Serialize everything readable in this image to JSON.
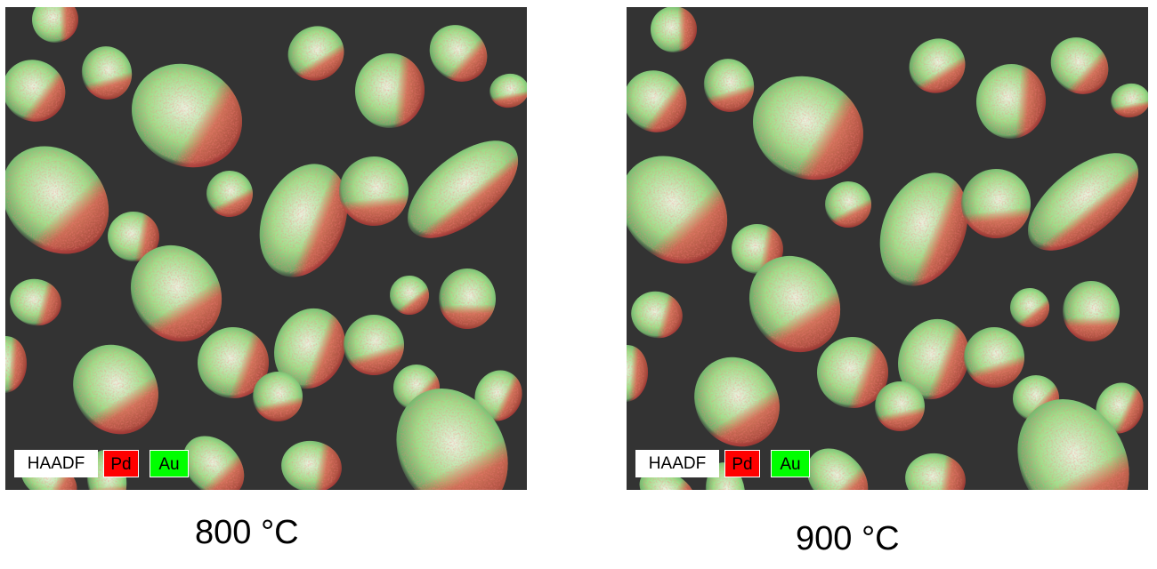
{
  "panels": [
    {
      "caption": "800 °C",
      "legend": {
        "haadf": "HAADF",
        "pd": "Pd",
        "au": "Au"
      }
    },
    {
      "caption": "900 °C",
      "legend": {
        "haadf": "HAADF",
        "pd": "Pd",
        "au": "Au"
      }
    }
  ],
  "colors": {
    "background": "#333333",
    "pd": "#ff0000",
    "au": "#00ff00",
    "haadf": "#ffffff"
  }
}
